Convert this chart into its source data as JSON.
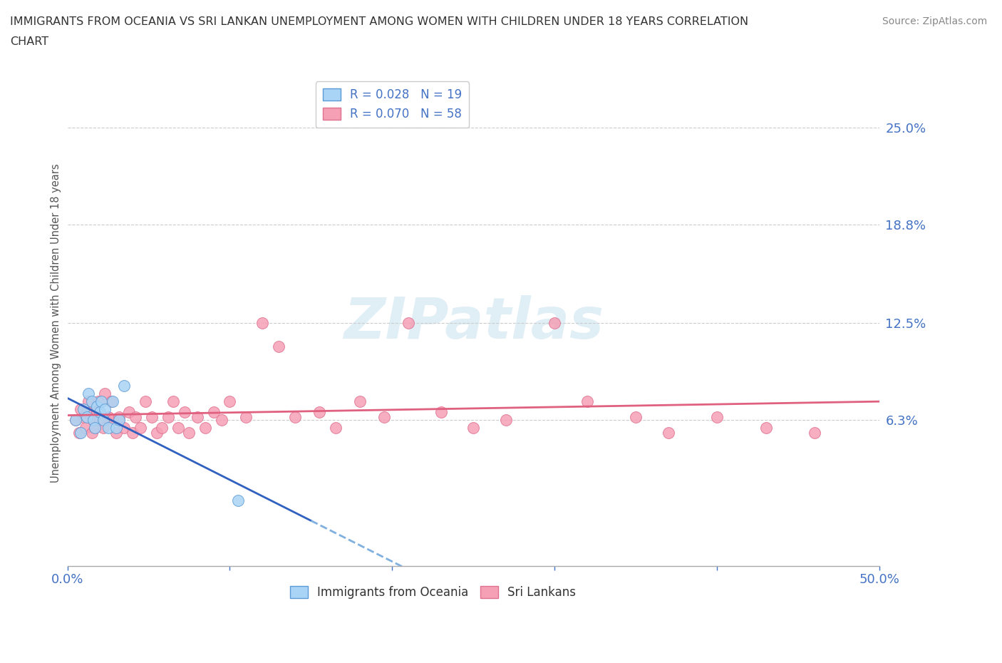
{
  "title_line1": "IMMIGRANTS FROM OCEANIA VS SRI LANKAN UNEMPLOYMENT AMONG WOMEN WITH CHILDREN UNDER 18 YEARS CORRELATION",
  "title_line2": "CHART",
  "source": "Source: ZipAtlas.com",
  "ylabel": "Unemployment Among Women with Children Under 18 years",
  "xlim": [
    0.0,
    0.5
  ],
  "ylim": [
    -0.03,
    0.28
  ],
  "yticks": [
    0.063,
    0.125,
    0.188,
    0.25
  ],
  "ytick_labels": [
    "6.3%",
    "12.5%",
    "18.8%",
    "25.0%"
  ],
  "xticks": [
    0.0,
    0.1,
    0.2,
    0.3,
    0.4,
    0.5
  ],
  "xtick_labels": [
    "0.0%",
    "",
    "",
    "",
    "",
    "50.0%"
  ],
  "grid_color": "#cccccc",
  "background_color": "#ffffff",
  "legend_R1": "R = 0.028",
  "legend_N1": "N = 19",
  "legend_R2": "R = 0.070",
  "legend_N2": "N = 58",
  "color_oceania": "#aad4f5",
  "color_srilanka": "#f5a0b5",
  "edge_oceania": "#5b9bd5",
  "edge_srilanka": "#e07090",
  "trendline_oceania_solid": "#3060c0",
  "trendline_oceania_dash": "#80b0e0",
  "trendline_srilanka_color": "#e06080",
  "oceania_x": [
    0.005,
    0.008,
    0.01,
    0.012,
    0.013,
    0.015,
    0.016,
    0.017,
    0.018,
    0.02,
    0.021,
    0.022,
    0.023,
    0.025,
    0.028,
    0.03,
    0.032,
    0.035,
    0.105
  ],
  "oceania_y": [
    0.063,
    0.055,
    0.07,
    0.065,
    0.08,
    0.075,
    0.063,
    0.058,
    0.072,
    0.068,
    0.075,
    0.063,
    0.07,
    0.058,
    0.075,
    0.058,
    0.063,
    0.085,
    0.012
  ],
  "srilanka_x": [
    0.005,
    0.007,
    0.008,
    0.01,
    0.011,
    0.012,
    0.013,
    0.015,
    0.016,
    0.017,
    0.018,
    0.019,
    0.02,
    0.022,
    0.023,
    0.025,
    0.027,
    0.028,
    0.03,
    0.032,
    0.035,
    0.038,
    0.04,
    0.042,
    0.045,
    0.048,
    0.052,
    0.055,
    0.058,
    0.062,
    0.065,
    0.068,
    0.072,
    0.075,
    0.08,
    0.085,
    0.09,
    0.095,
    0.1,
    0.11,
    0.12,
    0.13,
    0.14,
    0.155,
    0.165,
    0.18,
    0.195,
    0.21,
    0.23,
    0.25,
    0.27,
    0.3,
    0.32,
    0.35,
    0.37,
    0.4,
    0.43,
    0.46
  ],
  "srilanka_y": [
    0.063,
    0.055,
    0.07,
    0.065,
    0.058,
    0.068,
    0.075,
    0.055,
    0.063,
    0.058,
    0.068,
    0.075,
    0.063,
    0.058,
    0.08,
    0.065,
    0.075,
    0.063,
    0.055,
    0.065,
    0.058,
    0.068,
    0.055,
    0.065,
    0.058,
    0.075,
    0.065,
    0.055,
    0.058,
    0.065,
    0.075,
    0.058,
    0.068,
    0.055,
    0.065,
    0.058,
    0.068,
    0.063,
    0.075,
    0.065,
    0.125,
    0.11,
    0.065,
    0.068,
    0.058,
    0.075,
    0.065,
    0.125,
    0.068,
    0.058,
    0.063,
    0.125,
    0.075,
    0.065,
    0.055,
    0.065,
    0.058,
    0.055
  ]
}
